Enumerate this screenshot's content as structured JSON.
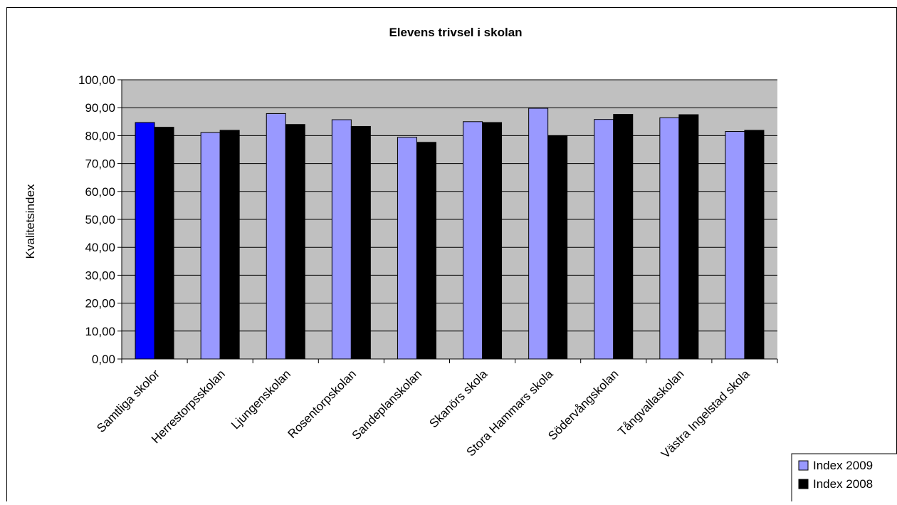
{
  "chart_data": {
    "type": "bar",
    "title": "Elevens trivsel i skolan",
    "xlabel": "",
    "ylabel": "Kvalitetsindex",
    "ylim": [
      0,
      100
    ],
    "yticks": [
      "0,00",
      "10,00",
      "20,00",
      "30,00",
      "40,00",
      "50,00",
      "60,00",
      "70,00",
      "80,00",
      "90,00",
      "100,00"
    ],
    "grid": true,
    "legend_position": "bottom-right",
    "categories": [
      "Samtliga  skolor",
      "Herrestorpsskolan",
      "Ljungenskolan",
      "Rosentorpskolan",
      "Sandeplanskolan",
      "Skanörs skola",
      "Stora Hammars skola",
      "Södervångskolan",
      "Tångvallaskolan",
      "Västra Ingelstad skola"
    ],
    "series": [
      {
        "name": "Index 2009",
        "color": "#9999ff",
        "highlight_color": "#0000ff",
        "values": [
          84.7,
          81.1,
          87.9,
          85.7,
          79.4,
          85.0,
          89.8,
          85.8,
          86.4,
          81.5
        ]
      },
      {
        "name": "Index 2008",
        "color": "#000000",
        "values": [
          83.0,
          81.9,
          84.0,
          83.3,
          77.6,
          84.7,
          80.0,
          87.6,
          87.5,
          81.9
        ]
      }
    ],
    "colors": {
      "plot_background": "#c0c0c0",
      "gridline": "#000000",
      "border": "#000000"
    }
  }
}
